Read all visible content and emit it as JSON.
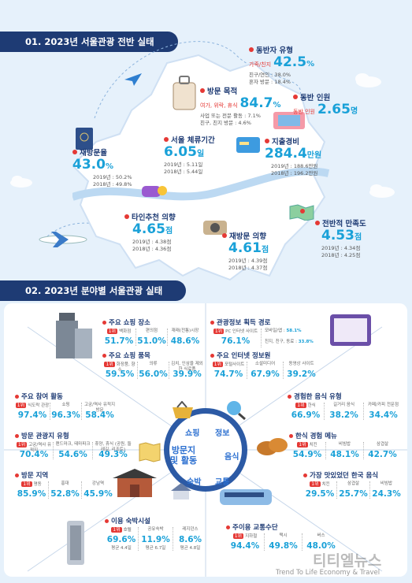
{
  "section1": {
    "title": "01. 2023년 서울관광 전반 실태",
    "companion_type": {
      "label": "동반자 유형",
      "highlight": "가족/친지",
      "value": "42.5",
      "unit": "%",
      "line1": "친구/연인 : 38.0%",
      "line2": "혼자 방문 : 18.4%"
    },
    "visit_purpose": {
      "label": "방문 목적",
      "highlight": "여가, 위락, 휴식",
      "value": "84.7",
      "unit": "%",
      "line1": "사업 또는 전문 활동 : 7.1%",
      "line2": "친구, 친지 방문 : 4.6%"
    },
    "companions": {
      "label": "동반 인원",
      "highlight": "동반 인원",
      "value": "2.65",
      "unit": "명"
    },
    "revisit_rate": {
      "label": "재방문율",
      "value": "43.0",
      "unit": "%",
      "line1": "2019년 : 50.2%",
      "line2": "2018년 : 49.8%"
    },
    "stay": {
      "label": "서울 체류기간",
      "value": "6.05",
      "unit": "일",
      "line1": "2019년 : 5.11일",
      "line2": "2018년 : 5.44일"
    },
    "spending": {
      "label": "지출경비",
      "value": "284.4",
      "unit": "만원",
      "line1": "2019년 : 188.6만원",
      "line2": "2018년 : 196.2만원"
    },
    "recommend": {
      "label": "타인추천 의향",
      "value": "4.65",
      "unit": "점",
      "line1": "2019년 : 4.38점",
      "line2": "2018년 : 4.36점"
    },
    "revisit_intent": {
      "label": "재방문 의향",
      "value": "4.61",
      "unit": "점",
      "line1": "2019년 : 4.39점",
      "line2": "2018년 : 4.37점"
    },
    "satisfaction": {
      "label": "전반적 만족도",
      "value": "4.53",
      "unit": "점",
      "line1": "2019년 : 4.34점",
      "line2": "2018년 : 4.25점"
    }
  },
  "section2": {
    "title": "02. 2023년 분야별 서울관광 실태",
    "shop_place": {
      "label": "주요 쇼핑 장소",
      "items": [
        {
          "n": "백화점",
          "v": "51.7%"
        },
        {
          "n": "편의점",
          "v": "51.0%"
        },
        {
          "n": "재래(전통)시장",
          "v": "48.6%"
        }
      ]
    },
    "shop_items": {
      "label": "주요 쇼핑 품목",
      "items": [
        {
          "n": "화장품, 향수",
          "v": "59.5%"
        },
        {
          "n": "의류",
          "v": "56.0%"
        },
        {
          "n": "김치, 인삼을 제외한 식료품",
          "v": "39.9%"
        }
      ]
    },
    "activities": {
      "label": "주요 참여 활동",
      "items": [
        {
          "n": "식도락 관광",
          "v": "97.4%"
        },
        {
          "n": "쇼핑",
          "v": "96.3%"
        },
        {
          "n": "고궁/역사 유적지 방문",
          "v": "58.4%"
        }
      ]
    },
    "site_type": {
      "label": "방문 관광지 유형",
      "items": [
        {
          "n": "고궁/역사 유적지",
          "v": "70.4%"
        },
        {
          "n": "랜드마크, 테마파크",
          "v": "54.6%"
        },
        {
          "n": "휴양, 휴식 (공원, 둘레길, 리조트)",
          "v": "49.3%"
        }
      ]
    },
    "areas": {
      "label": "방문 지역",
      "items": [
        {
          "n": "명동",
          "v": "85.9%"
        },
        {
          "n": "홍대",
          "v": "52.8%"
        },
        {
          "n": "강남역",
          "v": "45.9%"
        }
      ]
    },
    "lodging": {
      "label": "이용 숙박시설",
      "items": [
        {
          "n": "호텔",
          "v": "69.6%",
          "s": "평균 4.4일"
        },
        {
          "n": "공유숙박",
          "v": "11.9%",
          "s": "평균 6.7일"
        },
        {
          "n": "레지던스",
          "v": "8.6%",
          "s": "평균 4.8일"
        }
      ]
    },
    "info_source": {
      "label": "관광정보 획득 경로",
      "items": [
        {
          "n": "PC 인터넷 사이트",
          "v": "76.1%"
        },
        {
          "n": "모바일/앱",
          "v": "58.1%"
        },
        {
          "n": "친지, 친구, 동료",
          "v": "33.8%"
        }
      ]
    },
    "websites": {
      "label": "주요 인터넷 정보원",
      "items": [
        {
          "n": "포털사이트",
          "v": "74.7%"
        },
        {
          "n": "소셜미디어",
          "v": "67.9%"
        },
        {
          "n": "동영상 사이트",
          "v": "39.2%"
        }
      ]
    },
    "food_type": {
      "label": "경험한 음식 유형",
      "items": [
        {
          "n": "한식",
          "v": "66.9%"
        },
        {
          "n": "길거리 음식",
          "v": "38.2%"
        },
        {
          "n": "카페/카피 전문점",
          "v": "34.4%"
        }
      ]
    },
    "korean_menu": {
      "label": "한식 경험 메뉴",
      "items": [
        {
          "n": "치킨",
          "v": "54.9%"
        },
        {
          "n": "비빔밥",
          "v": "48.1%"
        },
        {
          "n": "삼겹살",
          "v": "42.7%"
        }
      ]
    },
    "best_food": {
      "label": "가장 맛있었던 한국 음식",
      "items": [
        {
          "n": "치킨",
          "v": "29.5%"
        },
        {
          "n": "삼겹살",
          "v": "25.7%"
        },
        {
          "n": "비빔밥",
          "v": "24.3%"
        }
      ]
    },
    "transport": {
      "label": "주이용 교통수단",
      "items": [
        {
          "n": "지하철",
          "v": "94.4%"
        },
        {
          "n": "택시",
          "v": "49.8%"
        },
        {
          "n": "버스",
          "v": "48.0%"
        }
      ]
    },
    "hub": {
      "shopping": "쇼핑",
      "info": "정보",
      "food": "음식",
      "transport": "교통",
      "lodging": "숙박",
      "center": "방문지 및 활동"
    }
  },
  "watermark": {
    "name": "티티엘뉴스",
    "sub": "Trend To Life Economy & Travel"
  }
}
